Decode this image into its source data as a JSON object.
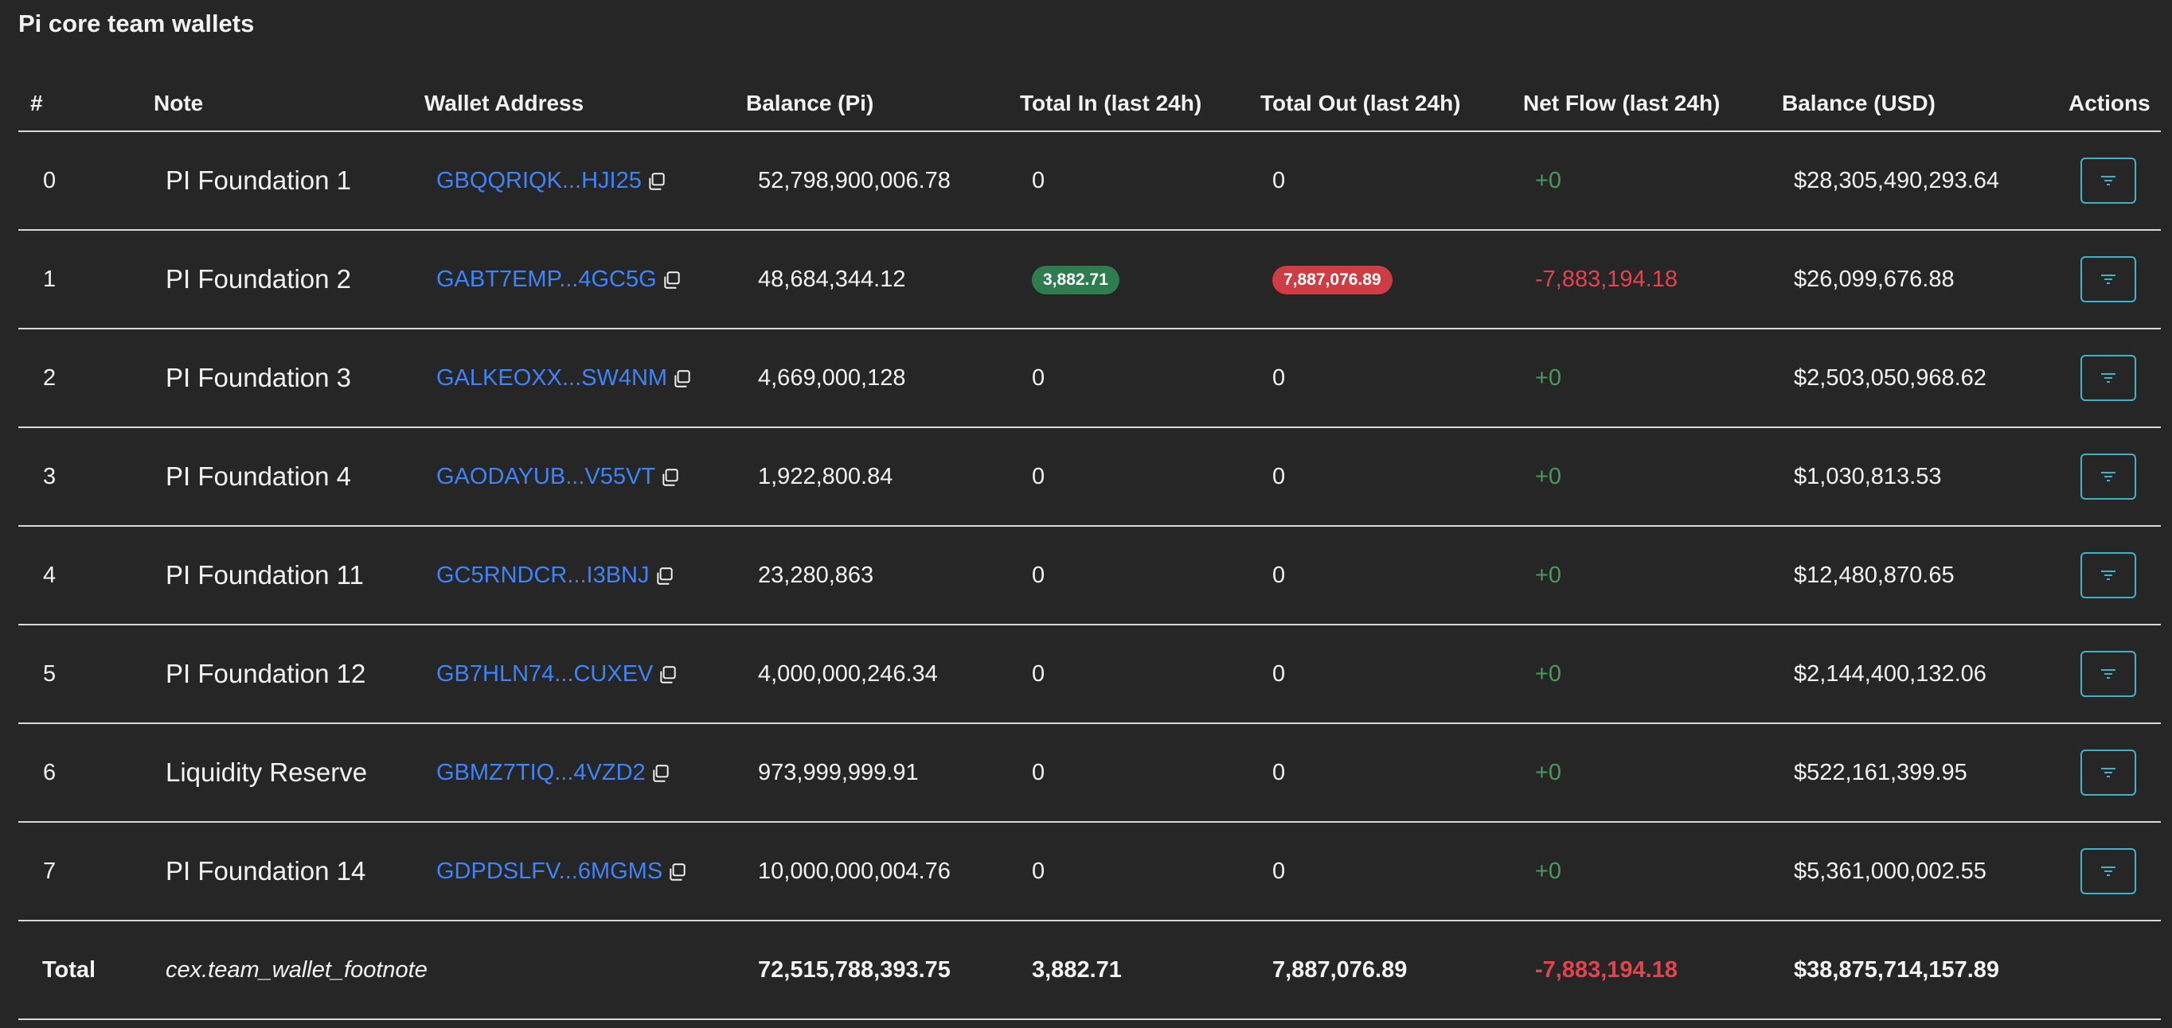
{
  "page": {
    "title": "Pi core team wallets"
  },
  "table": {
    "headers": [
      "#",
      "Note",
      "Wallet Address",
      "Balance (Pi)",
      "Total In (last 24h)",
      "Total Out (last 24h)",
      "Net Flow (last 24h)",
      "Balance (USD)",
      "Actions"
    ],
    "rows": [
      {
        "idx": "0",
        "note": "PI Foundation 1",
        "address": "GBQQRIQK...HJI25",
        "balance_pi": "52,798,900,006.78",
        "total_in": "0",
        "total_out": "0",
        "net_flow": "+0",
        "balance_usd": "$28,305,490,293.64"
      },
      {
        "idx": "1",
        "note": "PI Foundation 2",
        "address": "GABT7EMP...4GC5G",
        "balance_pi": "48,684,344.12",
        "total_in": "3,882.71",
        "total_out": "7,887,076.89",
        "net_flow": "-7,883,194.18",
        "balance_usd": "$26,099,676.88"
      },
      {
        "idx": "2",
        "note": "PI Foundation 3",
        "address": "GALKEOXX...SW4NM",
        "balance_pi": "4,669,000,128",
        "total_in": "0",
        "total_out": "0",
        "net_flow": "+0",
        "balance_usd": "$2,503,050,968.62"
      },
      {
        "idx": "3",
        "note": "PI Foundation 4",
        "address": "GAODAYUB...V55VT",
        "balance_pi": "1,922,800.84",
        "total_in": "0",
        "total_out": "0",
        "net_flow": "+0",
        "balance_usd": "$1,030,813.53"
      },
      {
        "idx": "4",
        "note": "PI Foundation 11",
        "address": "GC5RNDCR...I3BNJ",
        "balance_pi": "23,280,863",
        "total_in": "0",
        "total_out": "0",
        "net_flow": "+0",
        "balance_usd": "$12,480,870.65"
      },
      {
        "idx": "5",
        "note": "PI Foundation 12",
        "address": "GB7HLN74...CUXEV",
        "balance_pi": "4,000,000,246.34",
        "total_in": "0",
        "total_out": "0",
        "net_flow": "+0",
        "balance_usd": "$2,144,400,132.06"
      },
      {
        "idx": "6",
        "note": "Liquidity Reserve",
        "address": "GBMZ7TIQ...4VZD2",
        "balance_pi": "973,999,999.91",
        "total_in": "0",
        "total_out": "0",
        "net_flow": "+0",
        "balance_usd": "$522,161,399.95"
      },
      {
        "idx": "7",
        "note": "PI Foundation 14",
        "address": "GDPDSLFV...6MGMS",
        "balance_pi": "10,000,000,004.76",
        "total_in": "0",
        "total_out": "0",
        "net_flow": "+0",
        "balance_usd": "$5,361,000,002.55"
      }
    ],
    "footer": {
      "label": "Total",
      "note": "cex.team_wallet_footnote",
      "balance_pi": "72,515,788,393.75",
      "total_in": "3,882.71",
      "total_out": "7,887,076.89",
      "net_flow": "-7,883,194.18",
      "balance_usd": "$38,875,714,157.89"
    }
  },
  "icons": {
    "copy": "copy-icon",
    "filter": "filter-icon"
  },
  "colors": {
    "link": "#3f83f8",
    "positive": "#4a9a5c",
    "negative": "#e0454f",
    "badge_in": "#2f7d4f",
    "badge_out": "#cf3d44",
    "action_border": "#3fb2c7"
  }
}
